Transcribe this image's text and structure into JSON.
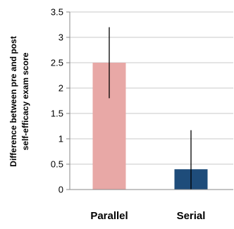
{
  "chart_data": {
    "type": "bar",
    "ylabel_lines": [
      "Difference between pre and post",
      "self-efficacy exam score"
    ],
    "categories": [
      "Parallel",
      "Serial"
    ],
    "values": [
      2.5,
      0.4
    ],
    "error_bars": [
      {
        "low": 1.8,
        "high": 3.2
      },
      {
        "low": 0.0,
        "high": 1.17
      }
    ],
    "bar_colors": [
      "#e8a8a6",
      "#1e4c7a"
    ],
    "ylim": [
      0,
      3.5
    ],
    "yticks": [
      "0",
      "0.5",
      "1",
      "1.5",
      "2",
      "2.5",
      "3",
      "3.5"
    ],
    "ytick_values": [
      0,
      0.5,
      1,
      1.5,
      2,
      2.5,
      3,
      3.5
    ],
    "grid": true,
    "legend": "none"
  }
}
